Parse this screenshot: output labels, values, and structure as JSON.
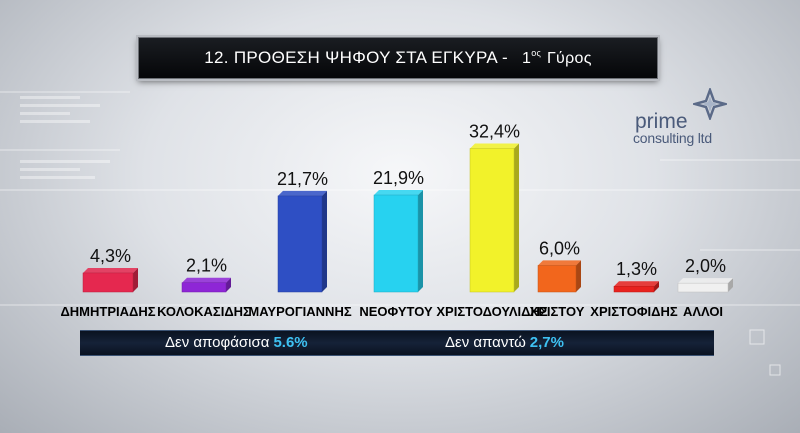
{
  "title": {
    "main": "12. ΠΡΟΘΕΣΗ ΨΗΦΟΥ ΣΤΑ ΕΓΚΥΡΑ -",
    "round_num": "1",
    "round_sup": "ος",
    "round_word": "Γύρος"
  },
  "logo": {
    "line1": "prime",
    "line2": "consulting ltd"
  },
  "chart_data": {
    "type": "bar",
    "categories": [
      "ΔΗΜΗΤΡΙΑΔΗΣ",
      "ΚΟΛΟΚΑΣΙΔΗΣ",
      "ΜΑΥΡΟΓΙΑΝΝΗΣ",
      "ΝΕΟΦΥΤΟΥ",
      "ΧΡΙΣΤΟΔΟΥΛΙΔΗΣ",
      "ΧΡΙΣΤΟΥ",
      "ΧΡΙΣΤΟΦΙΔΗΣ",
      "ΑΛΛΟΙ"
    ],
    "values": [
      4.3,
      2.1,
      21.7,
      21.9,
      32.4,
      6.0,
      1.3,
      2.0
    ],
    "value_labels": [
      "4,3%",
      "2,1%",
      "21,7%",
      "21,9%",
      "32,4%",
      "6,0%",
      "1,3%",
      "2,0%"
    ],
    "colors": [
      "#e5284f",
      "#8e26d6",
      "#2e4fc4",
      "#27d2f0",
      "#f2f22a",
      "#f2661c",
      "#e8221e",
      "#f0f0f0"
    ],
    "ylim": [
      0,
      35
    ],
    "grid": false,
    "legend": "none"
  },
  "footer": {
    "undecided_label": "Δεν αποφάσισα",
    "undecided_value": "5.6%",
    "no_answer_label": "Δεν απαντώ",
    "no_answer_value": "2,7%"
  }
}
